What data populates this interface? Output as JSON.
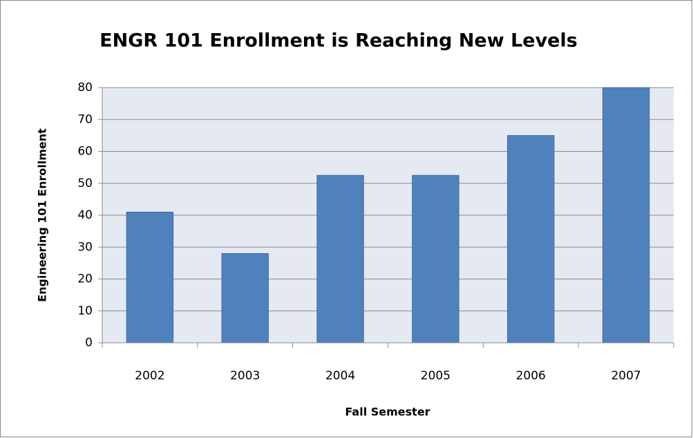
{
  "chart_data": {
    "type": "bar",
    "title": "ENGR 101 Enrollment is Reaching New Levels",
    "x_label": "Fall Semester",
    "y_label": "Engineering 101 Enrollment",
    "categories": [
      "2002",
      "2003",
      "2004",
      "2005",
      "2006",
      "2007"
    ],
    "values": [
      41,
      28,
      52.5,
      52.5,
      65,
      80
    ],
    "color": "#4f81bd",
    "ylim": [
      0,
      80
    ],
    "yticks": [
      0,
      10,
      20,
      30,
      40,
      50,
      60,
      70,
      80
    ],
    "grid": true
  }
}
